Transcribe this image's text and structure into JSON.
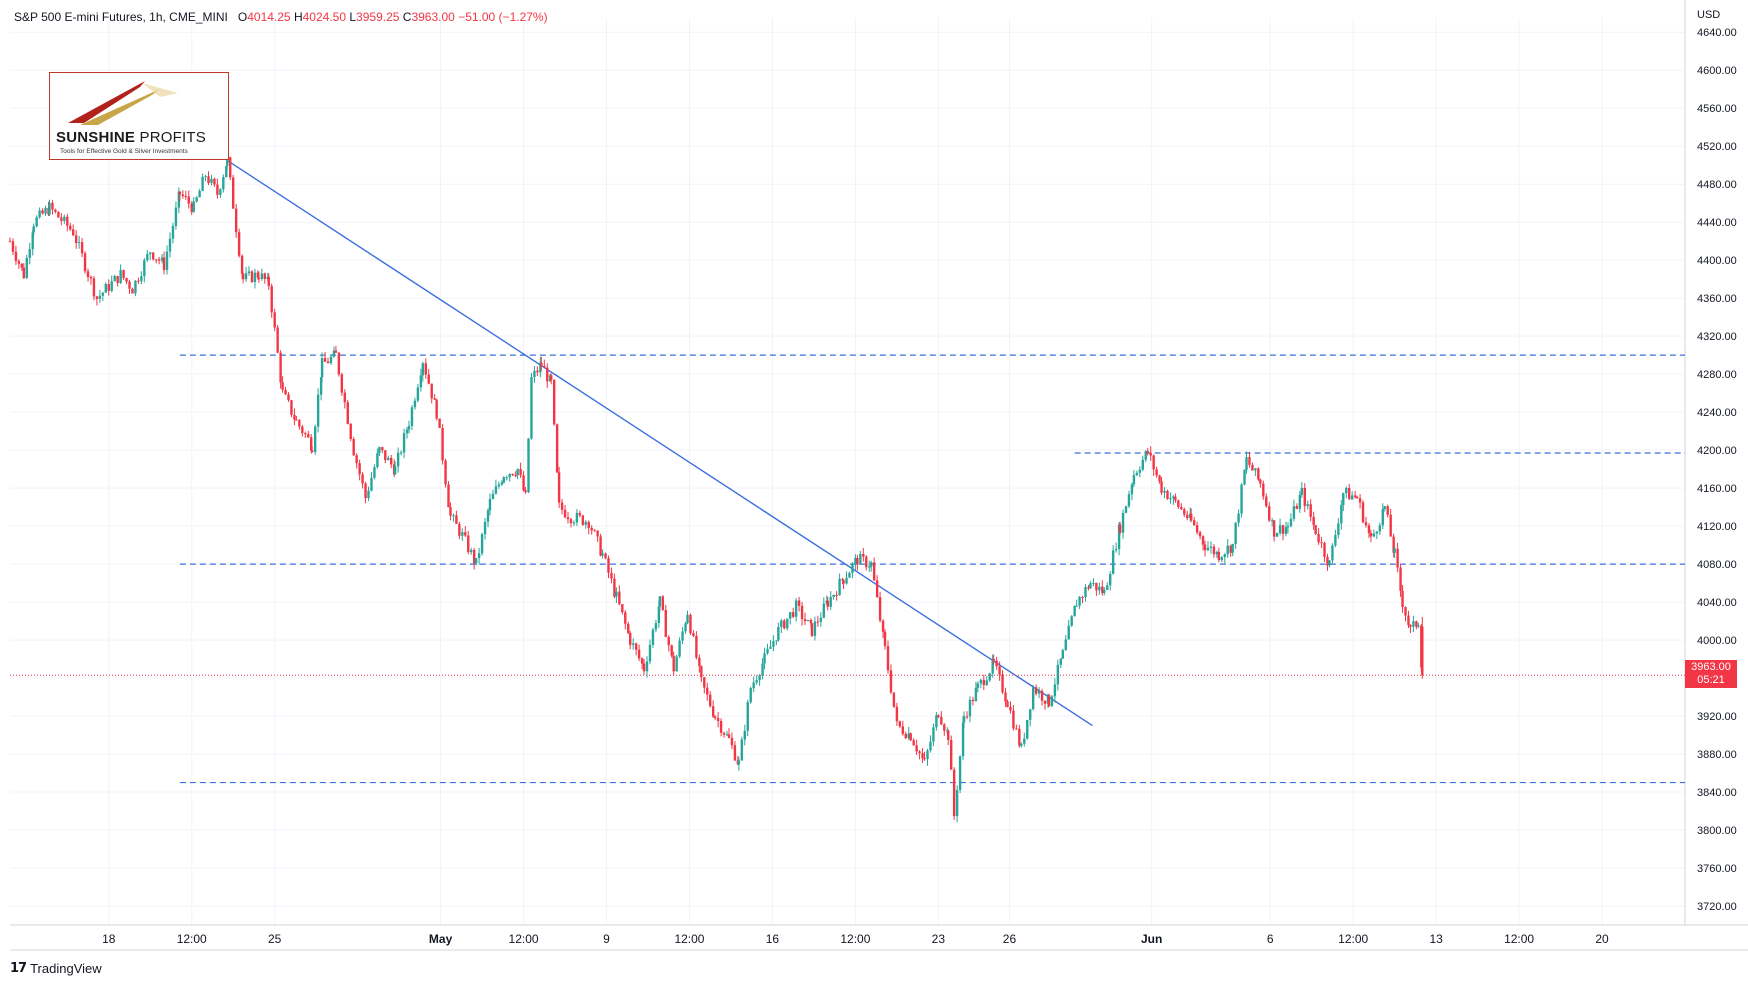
{
  "header": {
    "symbol": "S&P 500 E-mini Futures, 1h, CME_MINI",
    "open_label": "O",
    "open": "4014.25",
    "high_label": "H",
    "high": "4024.50",
    "low_label": "L",
    "low": "3959.25",
    "close_label": "C",
    "close": "3963.00",
    "change": "−51.00 (−1.27%)"
  },
  "logo": {
    "brand_bold": "SUNSHINE",
    "brand_thin": "PROFITS",
    "tagline": "Tools for Effective Gold & Silver Investments"
  },
  "axis": {
    "currency": "USD"
  },
  "price_badge": {
    "price": "3963.00",
    "countdown": "05:21"
  },
  "footer": {
    "icon": "tradingview-logo-icon",
    "brand": "TradingView"
  },
  "colors": {
    "up": "#26a69a",
    "down": "#f23645",
    "trendline": "#3b6fe0",
    "level": "#3b6fe0",
    "grid": "#f0f3fa",
    "axis_text": "#131722"
  },
  "chart_data": {
    "type": "candlestick",
    "title": "S&P 500 E-mini Futures, 1h, CME_MINI",
    "y_ticks": [
      4640,
      4600,
      4560,
      4520,
      4480,
      4440,
      4400,
      4360,
      4320,
      4280,
      4240,
      4200,
      4160,
      4120,
      4080,
      4040,
      4000,
      3960,
      3920,
      3880,
      3840,
      3800,
      3760,
      3720
    ],
    "y_tick_labels": [
      "4640.00",
      "4600.00",
      "4560.00",
      "4520.00",
      "4480.00",
      "4440.00",
      "4400.00",
      "4360.00",
      "4320.00",
      "4280.00",
      "4240.00",
      "4200.00",
      "4160.00",
      "4120.00",
      "4080.00",
      "4040.00",
      "4000.00",
      "",
      "3920.00",
      "3880.00",
      "3840.00",
      "3800.00",
      "3760.00",
      "3720.00"
    ],
    "ylim": [
      3700,
      4655
    ],
    "x_ticks": [
      "18",
      "12:00",
      "25",
      "May",
      "12:00",
      "9",
      "12:00",
      "16",
      "12:00",
      "23",
      "26",
      "Jun",
      "6",
      "12:00",
      "13",
      "12:00",
      "20"
    ],
    "x_tick_dates": [
      "2022-04-18",
      "2022-04-21 12:00",
      "2022-04-25",
      "2022-05-02",
      "2022-05-05 12:00",
      "2022-05-09",
      "2022-05-12 12:00",
      "2022-05-16",
      "2022-05-19 12:00",
      "2022-05-23",
      "2022-05-26",
      "2022-06-01",
      "2022-06-06",
      "2022-06-09 12:00",
      "2022-06-13",
      "2022-06-16 12:00",
      "2022-06-20"
    ],
    "xlim": [
      "2022-04-13 20:00",
      "2022-06-23 12:00"
    ],
    "grid": true,
    "series": [
      {
        "type": "close_path",
        "points": [
          [
            "2022-04-13 20:00",
            4420
          ],
          [
            "2022-04-14 10:00",
            4385
          ],
          [
            "2022-04-14 20:00",
            4440
          ],
          [
            "2022-04-15 12:00",
            4455
          ],
          [
            "2022-04-16 12:00",
            4430
          ],
          [
            "2022-04-17 12:00",
            4360
          ],
          [
            "2022-04-18 12:00",
            4385
          ],
          [
            "2022-04-19 00:00",
            4370
          ],
          [
            "2022-04-19 18:00",
            4410
          ],
          [
            "2022-04-20 08:00",
            4395
          ],
          [
            "2022-04-21 00:00",
            4470
          ],
          [
            "2022-04-21 14:00",
            4455
          ],
          [
            "2022-04-22 02:00",
            4490
          ],
          [
            "2022-04-22 14:00",
            4470
          ],
          [
            "2022-04-23 00:00",
            4505
          ],
          [
            "2022-04-23 16:00",
            4380
          ],
          [
            "2022-04-24 08:00",
            4385
          ],
          [
            "2022-04-24 18:00",
            4375
          ],
          [
            "2022-04-25 08:00",
            4260
          ],
          [
            "2022-04-25 22:00",
            4230
          ],
          [
            "2022-04-26 14:00",
            4205
          ],
          [
            "2022-04-27 00:00",
            4290
          ],
          [
            "2022-04-27 14:00",
            4300
          ],
          [
            "2022-04-28 08:00",
            4200
          ],
          [
            "2022-04-28 20:00",
            4150
          ],
          [
            "2022-04-29 10:00",
            4200
          ],
          [
            "2022-04-30 02:00",
            4180
          ],
          [
            "2022-04-30 16:00",
            4230
          ],
          [
            "2022-05-01 06:00",
            4295
          ],
          [
            "2022-05-01 20:00",
            4240
          ],
          [
            "2022-05-02 10:00",
            4130
          ],
          [
            "2022-05-02 22:00",
            4110
          ],
          [
            "2022-05-03 12:00",
            4080
          ],
          [
            "2022-05-04 02:00",
            4145
          ],
          [
            "2022-05-04 16:00",
            4175
          ],
          [
            "2022-05-05 06:00",
            4180
          ],
          [
            "2022-05-05 14:00",
            4150
          ],
          [
            "2022-05-05 20:00",
            4275
          ],
          [
            "2022-05-06 06:00",
            4290
          ],
          [
            "2022-05-06 16:00",
            4270
          ],
          [
            "2022-05-07 00:00",
            4140
          ],
          [
            "2022-05-07 12:00",
            4130
          ],
          [
            "2022-05-08 06:00",
            4125
          ],
          [
            "2022-05-08 20:00",
            4090
          ],
          [
            "2022-05-09 10:00",
            4045
          ],
          [
            "2022-05-10 00:00",
            4000
          ],
          [
            "2022-05-10 14:00",
            3970
          ],
          [
            "2022-05-11 06:00",
            4040
          ],
          [
            "2022-05-11 20:00",
            3970
          ],
          [
            "2022-05-12 10:00",
            4030
          ],
          [
            "2022-05-13 00:00",
            3955
          ],
          [
            "2022-05-13 14:00",
            3920
          ],
          [
            "2022-05-14 04:00",
            3895
          ],
          [
            "2022-05-14 14:00",
            3870
          ],
          [
            "2022-05-15 02:00",
            3950
          ],
          [
            "2022-05-15 16:00",
            3980
          ],
          [
            "2022-05-16 06:00",
            4010
          ],
          [
            "2022-05-17 00:00",
            4035
          ],
          [
            "2022-05-17 16:00",
            4010
          ],
          [
            "2022-05-18 08:00",
            4040
          ],
          [
            "2022-05-19 00:00",
            4065
          ],
          [
            "2022-05-19 14:00",
            4085
          ],
          [
            "2022-05-20 04:00",
            4080
          ],
          [
            "2022-05-20 18:00",
            3990
          ],
          [
            "2022-05-21 06:00",
            3910
          ],
          [
            "2022-05-21 20:00",
            3900
          ],
          [
            "2022-05-22 10:00",
            3870
          ],
          [
            "2022-05-23 00:00",
            3925
          ],
          [
            "2022-05-23 10:00",
            3900
          ],
          [
            "2022-05-23 16:00",
            3815
          ],
          [
            "2022-05-24 02:00",
            3920
          ],
          [
            "2022-05-24 16:00",
            3950
          ],
          [
            "2022-05-25 08:00",
            3975
          ],
          [
            "2022-05-25 22:00",
            3935
          ],
          [
            "2022-05-26 12:00",
            3885
          ],
          [
            "2022-05-27 00:00",
            3950
          ],
          [
            "2022-05-27 16:00",
            3935
          ],
          [
            "2022-05-28 06:00",
            3985
          ],
          [
            "2022-05-28 20:00",
            4040
          ],
          [
            "2022-05-29 10:00",
            4060
          ],
          [
            "2022-05-30 00:00",
            4050
          ],
          [
            "2022-05-30 16:00",
            4120
          ],
          [
            "2022-05-31 06:00",
            4175
          ],
          [
            "2022-05-31 20:00",
            4198
          ],
          [
            "2022-06-01 10:00",
            4160
          ],
          [
            "2022-06-02 00:00",
            4145
          ],
          [
            "2022-06-02 16:00",
            4125
          ],
          [
            "2022-06-03 06:00",
            4100
          ],
          [
            "2022-06-03 20:00",
            4090
          ],
          [
            "2022-06-04 10:00",
            4100
          ],
          [
            "2022-06-05 00:00",
            4190
          ],
          [
            "2022-06-05 14:00",
            4165
          ],
          [
            "2022-06-06 04:00",
            4115
          ],
          [
            "2022-06-06 18:00",
            4120
          ],
          [
            "2022-06-07 08:00",
            4155
          ],
          [
            "2022-06-07 22:00",
            4115
          ],
          [
            "2022-06-08 12:00",
            4080
          ],
          [
            "2022-06-09 02:00",
            4155
          ],
          [
            "2022-06-09 16:00",
            4150
          ],
          [
            "2022-06-10 06:00",
            4105
          ],
          [
            "2022-06-10 20:00",
            4140
          ],
          [
            "2022-06-11 06:00",
            4090
          ],
          [
            "2022-06-11 14:00",
            4040
          ],
          [
            "2022-06-11 22:00",
            4010
          ],
          [
            "2022-06-12 06:00",
            4020
          ],
          [
            "2022-06-12 10:00",
            3963
          ]
        ]
      },
      {
        "type": "trendline",
        "points": [
          [
            "2022-04-23 00:00",
            4505
          ],
          [
            "2022-05-29 12:00",
            3910
          ]
        ]
      },
      {
        "type": "levels",
        "lines": [
          {
            "value": 4300,
            "from": "2022-04-21 00:00"
          },
          {
            "value": 4197,
            "from": "2022-05-28 18:00"
          },
          {
            "value": 4080,
            "from": "2022-04-21 00:00"
          },
          {
            "value": 3850,
            "from": "2022-04-21 00:00"
          }
        ]
      },
      {
        "type": "last_price",
        "value": 3963.0
      }
    ]
  }
}
